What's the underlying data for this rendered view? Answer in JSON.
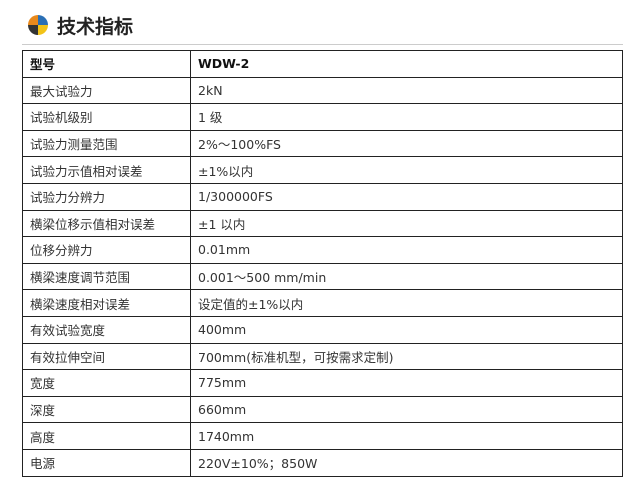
{
  "header": {
    "title": "技术指标"
  },
  "table": {
    "rows": [
      [
        "型号",
        "WDW-2"
      ],
      [
        "最大试验力",
        "2kN"
      ],
      [
        "试验机级别",
        "1 级"
      ],
      [
        "试验力测量范围",
        "2%～100%FS"
      ],
      [
        "试验力示值相对误差",
        "±1%以内"
      ],
      [
        "试验力分辨力",
        "1/300000FS"
      ],
      [
        "横梁位移示值相对误差",
        "±1 以内"
      ],
      [
        "位移分辨力",
        "0.01mm"
      ],
      [
        "横梁速度调节范围",
        "0.001～500 mm/min"
      ],
      [
        "横梁速度相对误差",
        "设定值的±1%以内"
      ],
      [
        "有效试验宽度",
        "400mm"
      ],
      [
        "有效拉伸空间",
        "700mm(标准机型，可按需求定制)"
      ],
      [
        "宽度",
        "775mm"
      ],
      [
        "深度",
        "660mm"
      ],
      [
        "高度",
        "1740mm"
      ],
      [
        "电源",
        "220V±10%；850W"
      ]
    ]
  }
}
